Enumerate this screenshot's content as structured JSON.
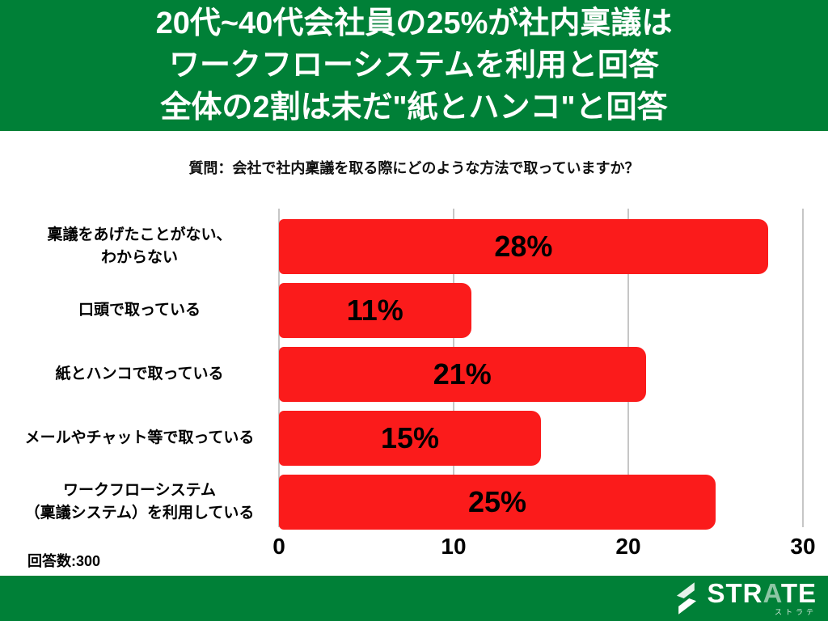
{
  "header": {
    "title_lines": [
      "20代~40代会社員の25%が社内稟議は",
      "ワークフローシステムを利用と回答",
      "全体の2割は未だ\"紙とハンコ\"と回答"
    ],
    "bg_color": "#008037",
    "text_color": "#ffffff"
  },
  "question": "質問：会社で社内稟議を取る際にどのような方法で取っていますか？",
  "chart_data": {
    "type": "bar",
    "orientation": "horizontal",
    "categories": [
      "稟議をあげたことがない、\nわからない",
      "口頭で取っている",
      "紙とハンコで取っている",
      "メールやチャット等で取っている",
      "ワークフローシステム\n（稟議システム）を利用している"
    ],
    "values": [
      28,
      11,
      21,
      15,
      25
    ],
    "value_labels": [
      "28%",
      "11%",
      "21%",
      "15%",
      "25%"
    ],
    "xlim": [
      0,
      30
    ],
    "x_ticks": [
      0,
      10,
      20,
      30
    ],
    "bar_color": "#fb1b1b",
    "value_label_color": "#000000",
    "grid": true,
    "gridline_color": "#c6c6c6",
    "title": "",
    "xlabel": "",
    "ylabel": ""
  },
  "footer": {
    "respondents": "回答数:300",
    "bar_color": "#008037",
    "logo": {
      "text_pre": "STR",
      "text_a": "A",
      "text_post": "TE",
      "subtext": "ストラテ"
    }
  }
}
